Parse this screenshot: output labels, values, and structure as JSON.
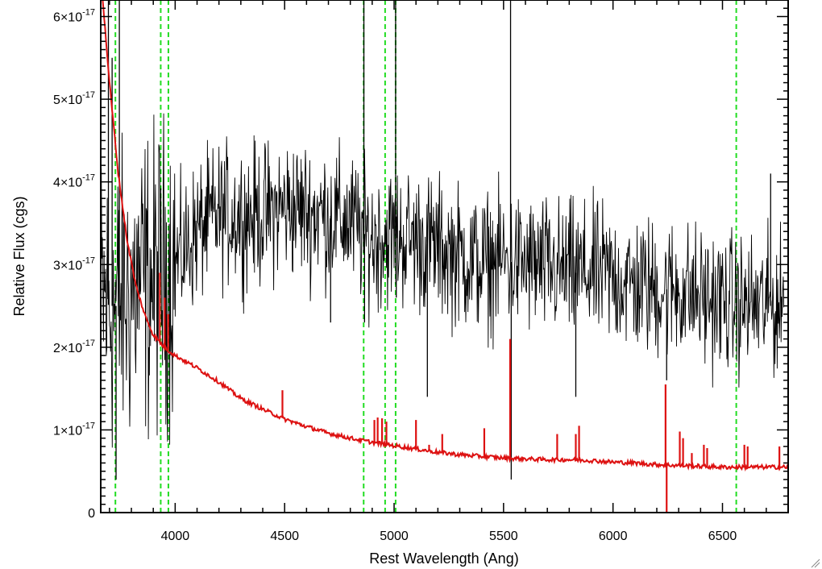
{
  "chart_data": {
    "type": "line",
    "title": "",
    "xlabel": "Rest Wavelength (Ang)",
    "ylabel": "Relative Flux (cgs)",
    "xlim": [
      3660,
      6800
    ],
    "ylim": [
      0,
      6.2e-17
    ],
    "x_ticks": [
      {
        "value": 4000,
        "label": "4000"
      },
      {
        "value": 4500,
        "label": "4500"
      },
      {
        "value": 5000,
        "label": "5000"
      },
      {
        "value": 5500,
        "label": "5500"
      },
      {
        "value": 6000,
        "label": "6000"
      },
      {
        "value": 6500,
        "label": "6500"
      }
    ],
    "y_ticks": [
      {
        "value": 0,
        "label": "0",
        "exp": ""
      },
      {
        "value": 1e-17,
        "label": "1×10",
        "exp": "-17"
      },
      {
        "value": 2e-17,
        "label": "2×10",
        "exp": "-17"
      },
      {
        "value": 3e-17,
        "label": "3×10",
        "exp": "-17"
      },
      {
        "value": 4e-17,
        "label": "4×10",
        "exp": "-17"
      },
      {
        "value": 5e-17,
        "label": "5×10",
        "exp": "-17"
      },
      {
        "value": 6e-17,
        "label": "6×10",
        "exp": "-17"
      }
    ],
    "grid": false,
    "series": [
      {
        "color": "#000000",
        "noise_amplitude": 6e-18,
        "x": [
          3660,
          3700,
          3750,
          3800,
          3850,
          3900,
          3950,
          4000,
          4100,
          4200,
          4300,
          4400,
          4500,
          4600,
          4700,
          4800,
          4900,
          5000,
          5100,
          5200,
          5300,
          5400,
          5500,
          5600,
          5700,
          5800,
          5900,
          6000,
          6100,
          6200,
          6300,
          6400,
          6500,
          6600,
          6700,
          6780
        ],
        "y": [
          2.6e-17,
          2.5e-17,
          2.5e-17,
          2.7e-17,
          2.8e-17,
          2.8e-17,
          2.9e-17,
          3e-17,
          3.4e-17,
          3.6e-17,
          3.6e-17,
          3.6e-17,
          3.7e-17,
          3.65e-17,
          3.6e-17,
          3.5e-17,
          3.3e-17,
          3.35e-17,
          3.3e-17,
          3.2e-17,
          3.1e-17,
          3e-17,
          3.05e-17,
          3e-17,
          2.95e-17,
          2.9e-17,
          2.9e-17,
          2.85e-17,
          2.75e-17,
          2.7e-17,
          2.7e-17,
          2.6e-17,
          2.55e-17,
          2.5e-17,
          2.5e-17,
          2.5e-17
        ]
      },
      {
        "color": "#dd1111",
        "x": [
          3660,
          3700,
          3740,
          3780,
          3820,
          3860,
          3900,
          3950,
          4000,
          4100,
          4200,
          4300,
          4400,
          4500,
          4600,
          4700,
          4800,
          4900,
          5000,
          5100,
          5200,
          5300,
          5400,
          5500,
          5600,
          5700,
          5800,
          5900,
          6000,
          6100,
          6200,
          6300,
          6400,
          6500,
          6600,
          6700,
          6800
        ],
        "y": [
          6.5e-17,
          5.2e-17,
          4.1e-17,
          3.3e-17,
          2.75e-17,
          2.4e-17,
          2.15e-17,
          2e-17,
          1.9e-17,
          1.75e-17,
          1.58e-17,
          1.38e-17,
          1.25e-17,
          1.13e-17,
          1.04e-17,
          9.6e-18,
          9e-18,
          8.5e-18,
          8.1e-18,
          7.7e-18,
          7.3e-18,
          7e-18,
          6.8e-18,
          6.6e-18,
          6.5e-18,
          6.4e-18,
          6.4e-18,
          6.3e-18,
          6.1e-18,
          6e-18,
          5.8e-18,
          5.7e-18,
          5.6e-18,
          5.5e-18,
          5.5e-18,
          5.5e-18,
          5.5e-18
        ]
      }
    ],
    "red_spikes": [
      {
        "x": 3930,
        "y": 2.9e-17
      },
      {
        "x": 3952,
        "y": 2.6e-17
      },
      {
        "x": 3968,
        "y": 2.4e-17
      },
      {
        "x": 4490,
        "y": 1.48e-17
      },
      {
        "x": 4910,
        "y": 1.12e-17
      },
      {
        "x": 4925,
        "y": 1.15e-17
      },
      {
        "x": 4945,
        "y": 1.14e-17
      },
      {
        "x": 4965,
        "y": 1.1e-17
      },
      {
        "x": 5100,
        "y": 1.12e-17
      },
      {
        "x": 5160,
        "y": 8.2e-18
      },
      {
        "x": 5220,
        "y": 9.5e-18
      },
      {
        "x": 5412,
        "y": 1.02e-17
      },
      {
        "x": 5530,
        "y": 2.1e-17
      },
      {
        "x": 5745,
        "y": 9.5e-18
      },
      {
        "x": 5830,
        "y": 9.5e-18
      },
      {
        "x": 5845,
        "y": 1.05e-17
      },
      {
        "x": 6240,
        "y": 1.55e-17
      },
      {
        "x": 6245,
        "y": -3e-18
      },
      {
        "x": 6305,
        "y": 9.8e-18
      },
      {
        "x": 6320,
        "y": 9e-18
      },
      {
        "x": 6360,
        "y": 7.2e-18
      },
      {
        "x": 6415,
        "y": 8.2e-18
      },
      {
        "x": 6430,
        "y": 7.8e-18
      },
      {
        "x": 6600,
        "y": 8.2e-18
      },
      {
        "x": 6615,
        "y": 8e-18
      },
      {
        "x": 6760,
        "y": 8e-18
      }
    ],
    "black_spikes": [
      {
        "x": 3695,
        "y": 6.2e-17
      },
      {
        "x": 3712,
        "y": 5.5e-17
      },
      {
        "x": 3730,
        "y": 4e-18
      },
      {
        "x": 3745,
        "y": 6.2e-17
      },
      {
        "x": 4862,
        "y": 6.2e-17
      },
      {
        "x": 4865,
        "y": 2.3e-17
      },
      {
        "x": 5007,
        "y": 6.2e-17
      },
      {
        "x": 5010,
        "y": 2.6e-17
      },
      {
        "x": 5532,
        "y": 6.2e-17
      },
      {
        "x": 5535,
        "y": 4e-18
      },
      {
        "x": 4710,
        "y": 2.3e-17
      },
      {
        "x": 5152,
        "y": 1.4e-17
      },
      {
        "x": 5830,
        "y": 1.4e-17
      },
      {
        "x": 6245,
        "y": 1.6e-17
      },
      {
        "x": 6720,
        "y": 4.1e-17
      }
    ],
    "vertical_lines": {
      "color": "#22dd22",
      "x": [
        3727,
        3934,
        3969,
        4861,
        4959,
        5007,
        6563
      ]
    }
  }
}
